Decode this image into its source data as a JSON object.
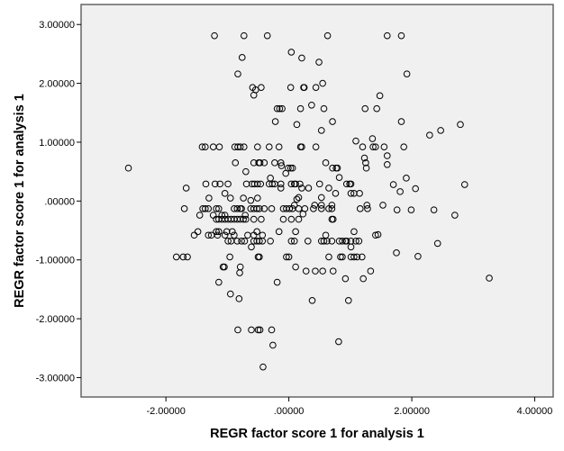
{
  "chart_data": {
    "type": "scatter",
    "title": "",
    "xlabel": "REGR factor score   1 for analysis 1",
    "ylabel": "REGR factor score   1 for analysis 1",
    "xlim": [
      -3.38,
      4.3
    ],
    "ylim": [
      -3.33,
      3.34
    ],
    "grid": false,
    "legend": "none",
    "marker": "hollow-circle",
    "colors": {
      "plot_background": "#f0f0f0",
      "marker": "#000000",
      "frame": "#666666"
    },
    "x_ticks": [
      {
        "value": -2,
        "label": "-2.00000"
      },
      {
        "value": 0,
        "label": ".00000"
      },
      {
        "value": 2,
        "label": "2.00000"
      },
      {
        "value": 4,
        "label": "4.00000"
      }
    ],
    "y_ticks": [
      {
        "value": 3,
        "label": "3.00000"
      },
      {
        "value": 2,
        "label": "2.00000"
      },
      {
        "value": 1,
        "label": "1.00000"
      },
      {
        "value": 0,
        "label": ".00000"
      },
      {
        "value": -1,
        "label": "-1.00000"
      },
      {
        "value": -2,
        "label": "-2.00000"
      },
      {
        "value": -3,
        "label": "-3.00000"
      }
    ],
    "points": [
      [
        -1.21,
        2.81
      ],
      [
        -0.73,
        2.81
      ],
      [
        -0.35,
        2.81
      ],
      [
        0.63,
        2.81
      ],
      [
        1.6,
        2.81
      ],
      [
        1.83,
        2.81
      ],
      [
        -0.76,
        2.44
      ],
      [
        -0.83,
        2.16
      ],
      [
        0.04,
        2.53
      ],
      [
        0.21,
        2.43
      ],
      [
        0.49,
        2.36
      ],
      [
        1.92,
        2.16
      ],
      [
        -0.59,
        1.93
      ],
      [
        -0.45,
        1.93
      ],
      [
        0.03,
        1.93
      ],
      [
        0.24,
        1.93
      ],
      [
        0.25,
        1.93
      ],
      [
        0.44,
        1.93
      ],
      [
        -0.54,
        1.89
      ],
      [
        -0.57,
        1.8
      ],
      [
        0.55,
        2.0
      ],
      [
        1.48,
        1.79
      ],
      [
        -0.19,
        1.57
      ],
      [
        -0.15,
        1.57
      ],
      [
        -0.11,
        1.57
      ],
      [
        0.19,
        1.57
      ],
      [
        0.57,
        1.57
      ],
      [
        1.24,
        1.57
      ],
      [
        1.43,
        1.57
      ],
      [
        0.37,
        1.63
      ],
      [
        -0.22,
        1.35
      ],
      [
        0.13,
        1.3
      ],
      [
        0.71,
        1.35
      ],
      [
        0.53,
        1.2
      ],
      [
        1.83,
        1.35
      ],
      [
        2.47,
        1.2
      ],
      [
        2.79,
        1.3
      ],
      [
        2.29,
        1.12
      ],
      [
        -2.61,
        0.56
      ],
      [
        -1.67,
        0.22
      ],
      [
        -1.7,
        -0.13
      ],
      [
        -1.41,
        0.92
      ],
      [
        -1.36,
        0.92
      ],
      [
        -1.23,
        0.92
      ],
      [
        -1.13,
        0.92
      ],
      [
        -0.88,
        0.92
      ],
      [
        -0.83,
        0.92
      ],
      [
        -0.79,
        0.92
      ],
      [
        -0.73,
        0.92
      ],
      [
        -0.51,
        0.92
      ],
      [
        -0.32,
        0.92
      ],
      [
        -0.16,
        0.92
      ],
      [
        0.19,
        0.92
      ],
      [
        0.21,
        0.92
      ],
      [
        0.44,
        0.92
      ],
      [
        1.2,
        0.92
      ],
      [
        1.37,
        0.92
      ],
      [
        1.41,
        0.92
      ],
      [
        1.55,
        0.92
      ],
      [
        1.09,
        1.02
      ],
      [
        1.36,
        1.06
      ],
      [
        1.87,
        0.92
      ],
      [
        -0.87,
        0.65
      ],
      [
        -0.57,
        0.65
      ],
      [
        -0.49,
        0.65
      ],
      [
        -0.47,
        0.65
      ],
      [
        -0.4,
        0.65
      ],
      [
        -0.23,
        0.65
      ],
      [
        -0.13,
        0.65
      ],
      [
        -0.12,
        0.6
      ],
      [
        -0.7,
        0.5
      ],
      [
        -0.3,
        0.39
      ],
      [
        1.23,
        0.73
      ],
      [
        1.6,
        0.77
      ],
      [
        0.6,
        0.65
      ],
      [
        1.25,
        0.65
      ],
      [
        1.6,
        0.62
      ],
      [
        -0.01,
        0.56
      ],
      [
        0.03,
        0.56
      ],
      [
        0.06,
        0.56
      ],
      [
        0.71,
        0.56
      ],
      [
        0.77,
        0.56
      ],
      [
        0.79,
        0.56
      ],
      [
        1.26,
        0.56
      ],
      [
        -0.05,
        0.47
      ],
      [
        0.82,
        0.4
      ],
      [
        -1.35,
        0.29
      ],
      [
        -1.2,
        0.29
      ],
      [
        -1.12,
        0.29
      ],
      [
        -0.99,
        0.29
      ],
      [
        -0.69,
        0.29
      ],
      [
        -0.6,
        0.29
      ],
      [
        -0.56,
        0.29
      ],
      [
        -0.51,
        0.29
      ],
      [
        -0.46,
        0.29
      ],
      [
        -0.32,
        0.29
      ],
      [
        -0.27,
        0.29
      ],
      [
        -0.23,
        0.29
      ],
      [
        -0.13,
        0.29
      ],
      [
        0.04,
        0.29
      ],
      [
        0.09,
        0.29
      ],
      [
        0.11,
        0.29
      ],
      [
        0.18,
        0.29
      ],
      [
        0.5,
        0.29
      ],
      [
        0.94,
        0.29
      ],
      [
        0.99,
        0.29
      ],
      [
        1.01,
        0.29
      ],
      [
        -0.13,
        0.22
      ],
      [
        0.21,
        0.22
      ],
      [
        0.32,
        0.22
      ],
      [
        0.65,
        0.22
      ],
      [
        1.91,
        0.39
      ],
      [
        1.7,
        0.28
      ],
      [
        1.81,
        0.16
      ],
      [
        2.06,
        0.21
      ],
      [
        2.86,
        0.28
      ],
      [
        -1.04,
        0.13
      ],
      [
        0.76,
        0.13
      ],
      [
        1.01,
        0.13
      ],
      [
        1.06,
        0.13
      ],
      [
        1.15,
        0.13
      ],
      [
        -1.3,
        0.05
      ],
      [
        -0.95,
        0.05
      ],
      [
        -0.74,
        0.05
      ],
      [
        -0.51,
        0.05
      ],
      [
        -0.62,
        0.01
      ],
      [
        0.16,
        0.06
      ],
      [
        0.53,
        0.06
      ],
      [
        0.13,
        0.03
      ],
      [
        0.09,
        -0.07
      ],
      [
        0.42,
        -0.07
      ],
      [
        0.53,
        -0.07
      ],
      [
        0.7,
        -0.07
      ],
      [
        1.27,
        -0.07
      ],
      [
        1.53,
        -0.07
      ],
      [
        -1.4,
        -0.13
      ],
      [
        -1.36,
        -0.13
      ],
      [
        -1.31,
        -0.13
      ],
      [
        -1.18,
        -0.13
      ],
      [
        -1.14,
        -0.13
      ],
      [
        -0.89,
        -0.13
      ],
      [
        -0.84,
        -0.13
      ],
      [
        -0.79,
        -0.13
      ],
      [
        -0.77,
        -0.13
      ],
      [
        -0.62,
        -0.13
      ],
      [
        -0.57,
        -0.13
      ],
      [
        -0.52,
        -0.13
      ],
      [
        -0.48,
        -0.13
      ],
      [
        -0.4,
        -0.13
      ],
      [
        -0.28,
        -0.13
      ],
      [
        -0.09,
        -0.13
      ],
      [
        -0.04,
        -0.13
      ],
      [
        0.01,
        -0.13
      ],
      [
        0.06,
        -0.13
      ],
      [
        0.16,
        -0.13
      ],
      [
        0.26,
        -0.13
      ],
      [
        0.4,
        -0.13
      ],
      [
        0.53,
        -0.13
      ],
      [
        0.65,
        -0.13
      ],
      [
        0.7,
        -0.13
      ],
      [
        1.16,
        -0.13
      ],
      [
        1.28,
        -0.13
      ],
      [
        1.76,
        -0.15
      ],
      [
        1.99,
        -0.15
      ],
      [
        2.36,
        -0.15
      ],
      [
        2.7,
        -0.24
      ],
      [
        -1.45,
        -0.24
      ],
      [
        -1.23,
        -0.24
      ],
      [
        -1.09,
        -0.24
      ],
      [
        -1.04,
        -0.24
      ],
      [
        -0.71,
        -0.24
      ],
      [
        0.23,
        -0.22
      ],
      [
        -1.18,
        -0.31
      ],
      [
        -1.14,
        -0.31
      ],
      [
        -1.09,
        -0.31
      ],
      [
        -1.04,
        -0.31
      ],
      [
        -0.99,
        -0.31
      ],
      [
        -0.94,
        -0.31
      ],
      [
        -0.89,
        -0.31
      ],
      [
        -0.84,
        -0.31
      ],
      [
        -0.79,
        -0.31
      ],
      [
        -0.74,
        -0.31
      ],
      [
        -0.7,
        -0.31
      ],
      [
        -0.57,
        -0.31
      ],
      [
        -0.45,
        -0.31
      ],
      [
        -0.09,
        -0.31
      ],
      [
        0.04,
        -0.31
      ],
      [
        0.16,
        -0.31
      ],
      [
        0.7,
        -0.31
      ],
      [
        0.72,
        -0.31
      ],
      [
        -1.48,
        -0.52
      ],
      [
        -1.18,
        -0.52
      ],
      [
        -1.14,
        -0.52
      ],
      [
        -1.01,
        -0.52
      ],
      [
        -0.92,
        -0.52
      ],
      [
        -0.52,
        -0.52
      ],
      [
        -0.16,
        -0.52
      ],
      [
        0.11,
        -0.52
      ],
      [
        1.06,
        -0.52
      ],
      [
        1.45,
        -0.57
      ],
      [
        -1.54,
        -0.58
      ],
      [
        -1.31,
        -0.58
      ],
      [
        -1.26,
        -0.58
      ],
      [
        -1.16,
        -0.58
      ],
      [
        -1.04,
        -0.58
      ],
      [
        -0.89,
        -0.58
      ],
      [
        -0.67,
        -0.58
      ],
      [
        -0.57,
        -0.58
      ],
      [
        -0.43,
        -0.58
      ],
      [
        0.6,
        -0.58
      ],
      [
        1.41,
        -0.58
      ],
      [
        -0.99,
        -0.68
      ],
      [
        -0.94,
        -0.68
      ],
      [
        -0.84,
        -0.68
      ],
      [
        -0.77,
        -0.68
      ],
      [
        -0.72,
        -0.68
      ],
      [
        -0.57,
        -0.68
      ],
      [
        -0.52,
        -0.68
      ],
      [
        -0.48,
        -0.68
      ],
      [
        -0.43,
        -0.68
      ],
      [
        -0.3,
        -0.68
      ],
      [
        0.04,
        -0.68
      ],
      [
        0.09,
        -0.68
      ],
      [
        0.31,
        -0.68
      ],
      [
        0.53,
        -0.68
      ],
      [
        0.57,
        -0.68
      ],
      [
        0.62,
        -0.68
      ],
      [
        0.7,
        -0.68
      ],
      [
        0.82,
        -0.68
      ],
      [
        0.87,
        -0.68
      ],
      [
        0.92,
        -0.68
      ],
      [
        0.94,
        -0.68
      ],
      [
        1.01,
        -0.68
      ],
      [
        1.09,
        -0.68
      ],
      [
        1.14,
        -0.68
      ],
      [
        2.42,
        -0.72
      ],
      [
        -0.61,
        -0.78
      ],
      [
        1.01,
        -0.78
      ],
      [
        -1.83,
        -0.95
      ],
      [
        -1.72,
        -0.95
      ],
      [
        -1.65,
        -0.95
      ],
      [
        -0.96,
        -0.95
      ],
      [
        -0.5,
        -0.95
      ],
      [
        -0.48,
        -0.95
      ],
      [
        -0.04,
        -0.95
      ],
      [
        0.0,
        -0.95
      ],
      [
        0.65,
        -0.95
      ],
      [
        0.84,
        -0.95
      ],
      [
        0.87,
        -0.95
      ],
      [
        1.01,
        -0.95
      ],
      [
        1.06,
        -0.95
      ],
      [
        1.11,
        -0.95
      ],
      [
        1.19,
        -0.95
      ],
      [
        1.75,
        -0.88
      ],
      [
        2.1,
        -0.94
      ],
      [
        -1.07,
        -1.12
      ],
      [
        -1.05,
        -1.12
      ],
      [
        -0.79,
        -1.12
      ],
      [
        0.11,
        -1.12
      ],
      [
        -0.8,
        -1.22
      ],
      [
        0.28,
        -1.19
      ],
      [
        0.43,
        -1.19
      ],
      [
        0.55,
        -1.19
      ],
      [
        0.72,
        -1.19
      ],
      [
        1.33,
        -1.19
      ],
      [
        3.26,
        -1.31
      ],
      [
        0.92,
        -1.32
      ],
      [
        1.21,
        -1.32
      ],
      [
        -1.14,
        -1.38
      ],
      [
        -0.19,
        -1.38
      ],
      [
        -0.95,
        -1.58
      ],
      [
        -0.81,
        -1.66
      ],
      [
        0.38,
        -1.69
      ],
      [
        0.97,
        -1.69
      ],
      [
        -0.83,
        -2.19
      ],
      [
        -0.61,
        -2.19
      ],
      [
        -0.5,
        -2.19
      ],
      [
        -0.47,
        -2.19
      ],
      [
        -0.28,
        -2.19
      ],
      [
        0.81,
        -2.39
      ],
      [
        -0.26,
        -2.45
      ],
      [
        -0.42,
        -2.82
      ]
    ]
  }
}
